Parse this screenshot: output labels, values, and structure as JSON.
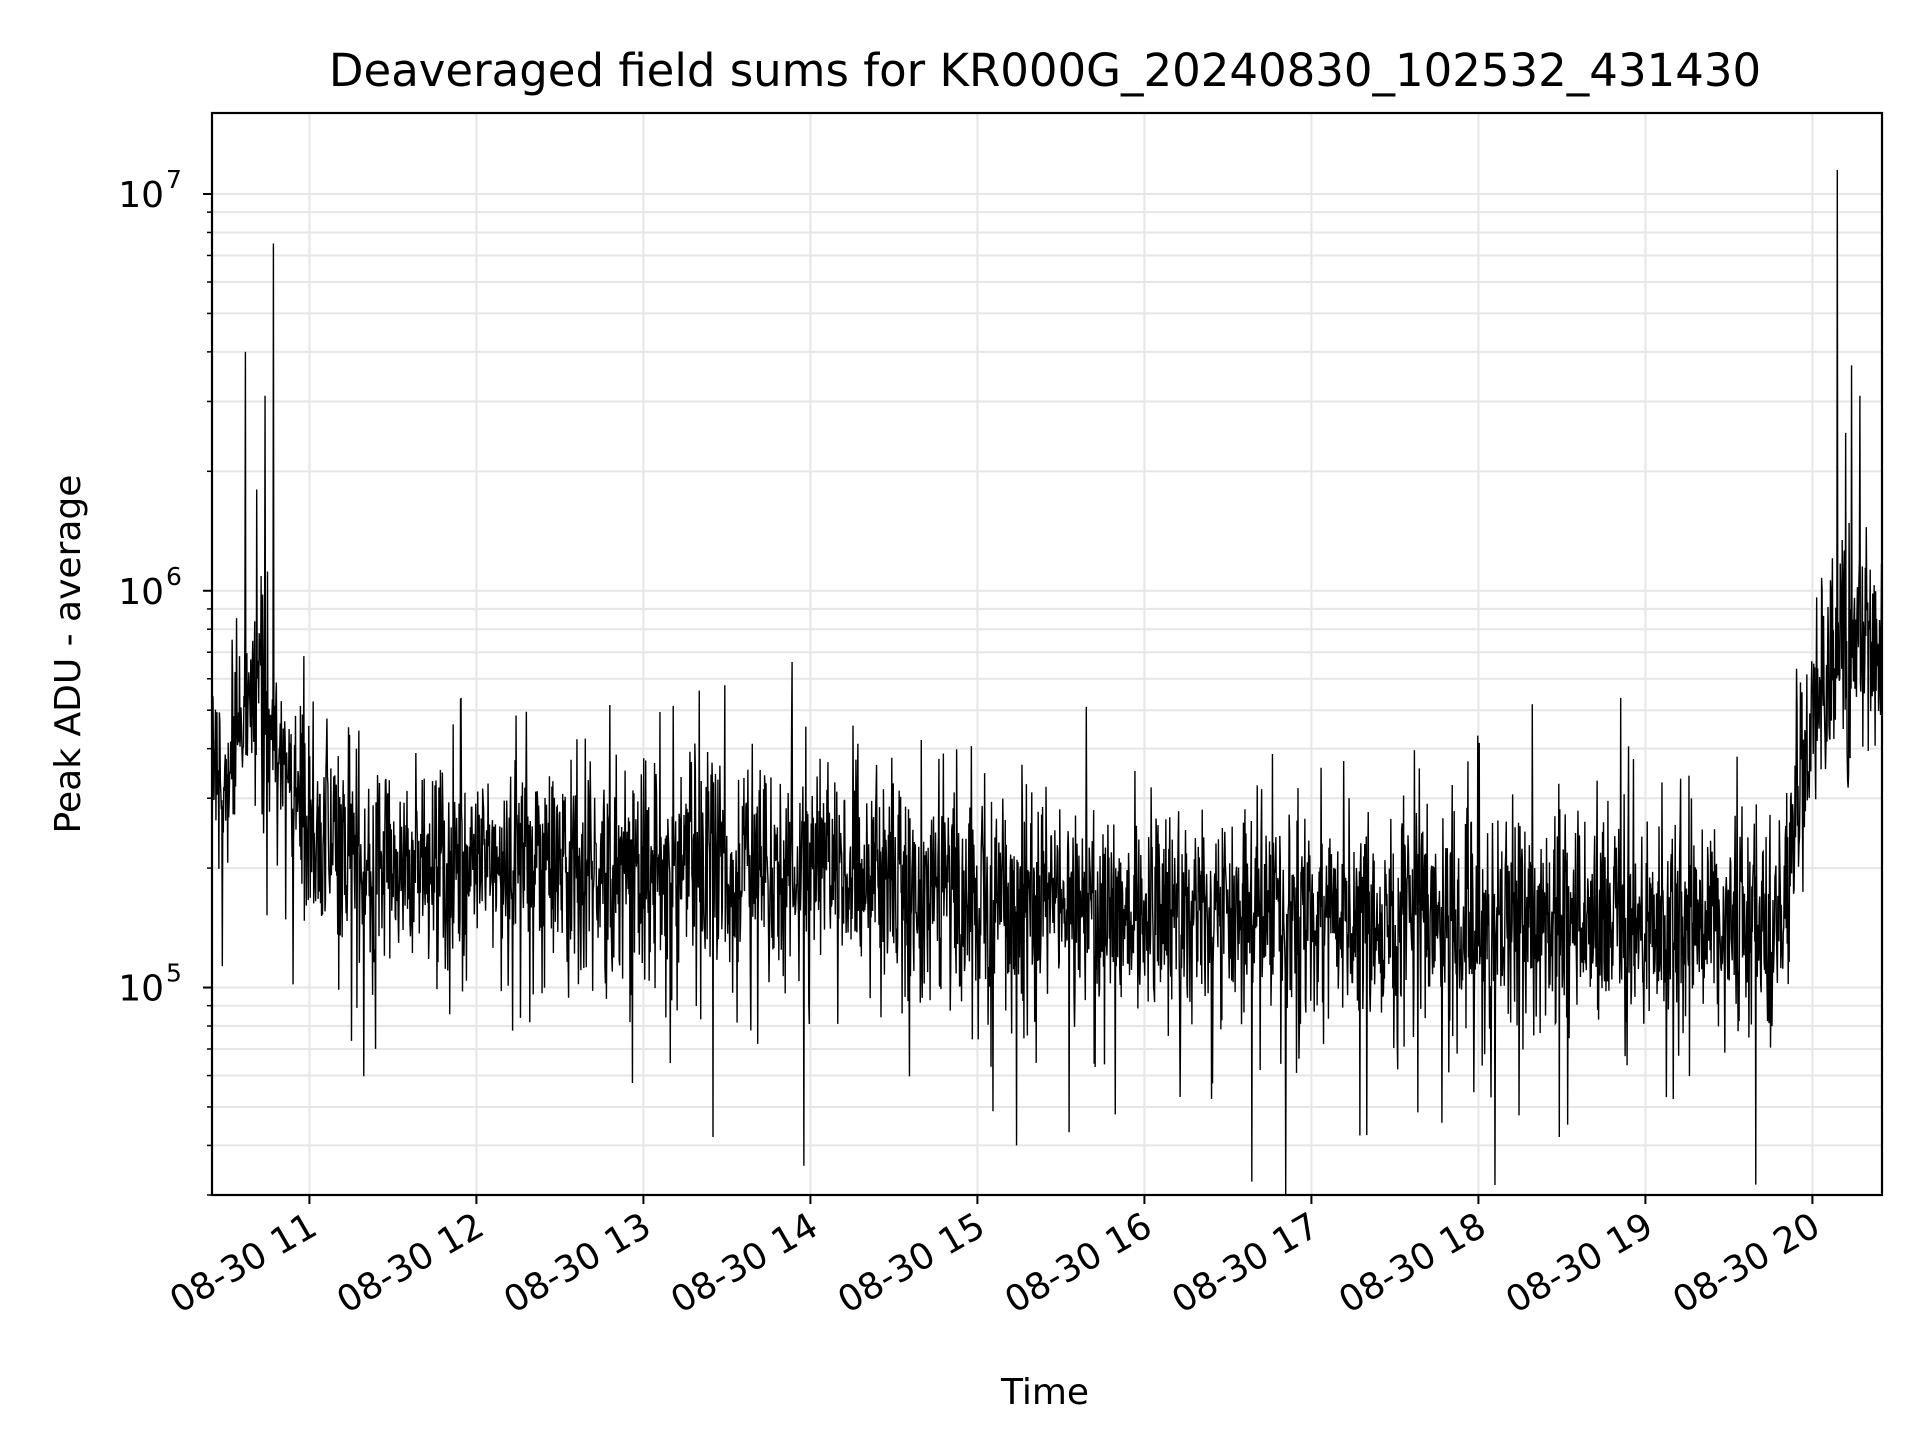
{
  "chart_data": {
    "type": "line",
    "title": "Deaveraged field sums for KR000G_20240830_102532_431430",
    "xlabel": "Time",
    "ylabel": "Peak ADU - average",
    "yscale": "log",
    "ylim": [
      30000,
      16000000
    ],
    "xlim": [
      "2024-08-30 10:25",
      "2024-08-30 20:25"
    ],
    "x_ticks": [
      "08-30 11",
      "08-30 12",
      "08-30 13",
      "08-30 14",
      "08-30 15",
      "08-30 16",
      "08-30 17",
      "08-30 18",
      "08-30 19",
      "08-30 20"
    ],
    "y_ticks": [
      {
        "value": 100000,
        "base": "10",
        "exponent": "5"
      },
      {
        "value": 1000000,
        "base": "10",
        "exponent": "6"
      },
      {
        "value": 10000000,
        "base": "10",
        "exponent": "7"
      }
    ],
    "grid": true,
    "line_color": "#000000",
    "series": [
      {
        "x": [
          "2024-08-30 10:25",
          "2024-08-30 10:30",
          "2024-08-30 10:35",
          "2024-08-30 10:40",
          "2024-08-30 10:45",
          "2024-08-30 10:50",
          "2024-08-30 10:55",
          "2024-08-30 11:00",
          "2024-08-30 11:10",
          "2024-08-30 11:20",
          "2024-08-30 11:30",
          "2024-08-30 11:45",
          "2024-08-30 12:00",
          "2024-08-30 12:30",
          "2024-08-30 13:00",
          "2024-08-30 13:30",
          "2024-08-30 14:00",
          "2024-08-30 14:30",
          "2024-08-30 15:00",
          "2024-08-30 15:30",
          "2024-08-30 16:00",
          "2024-08-30 16:30",
          "2024-08-30 17:00",
          "2024-08-30 17:30",
          "2024-08-30 18:00",
          "2024-08-30 18:30",
          "2024-08-30 19:00",
          "2024-08-30 19:30",
          "2024-08-30 19:45",
          "2024-08-30 19:50",
          "2024-08-30 19:55",
          "2024-08-30 20:00",
          "2024-08-30 20:05",
          "2024-08-30 20:10",
          "2024-08-30 20:15",
          "2024-08-30 20:20",
          "2024-08-30 20:25"
        ],
        "values": [
          300000,
          350000,
          450000,
          480000,
          550000,
          450000,
          300000,
          250000,
          230000,
          210000,
          200000,
          200000,
          210000,
          210000,
          205000,
          200000,
          195000,
          185000,
          175000,
          165000,
          160000,
          160000,
          158000,
          155000,
          150000,
          148000,
          150000,
          148000,
          145000,
          200000,
          300000,
          500000,
          650000,
          750000,
          800000,
          780000,
          700000
        ]
      }
    ],
    "spikes": [
      {
        "x": "2024-08-30 10:37",
        "y": 4000000
      },
      {
        "x": "2024-08-30 10:41",
        "y": 1800000
      },
      {
        "x": "2024-08-30 10:44",
        "y": 3100000
      },
      {
        "x": "2024-08-30 10:47",
        "y": 7500000
      },
      {
        "x": "2024-08-30 13:20",
        "y": 560000
      },
      {
        "x": "2024-08-30 19:56",
        "y": 520000
      },
      {
        "x": "2024-08-30 20:09",
        "y": 11500000
      },
      {
        "x": "2024-08-30 20:12",
        "y": 2500000
      },
      {
        "x": "2024-08-30 20:14",
        "y": 3700000
      },
      {
        "x": "2024-08-30 20:17",
        "y": 3100000
      }
    ],
    "dips": [
      {
        "x": "2024-08-30 13:25",
        "y": 42000
      },
      {
        "x": "2024-08-30 15:14",
        "y": 40000
      },
      {
        "x": "2024-08-30 18:29",
        "y": 42000
      }
    ]
  }
}
